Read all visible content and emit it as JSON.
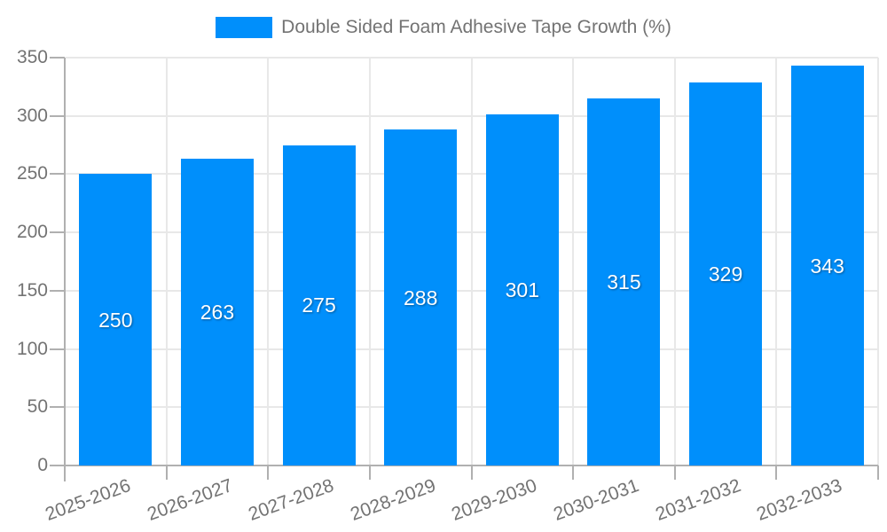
{
  "legend": {
    "label": "Double Sided Foam Adhesive Tape Growth (%)"
  },
  "chart_data": {
    "type": "bar",
    "title": "Double Sided Foam Adhesive Tape Growth (%)",
    "categories": [
      "2025-2026",
      "2026-2027",
      "2027-2028",
      "2028-2029",
      "2029-2030",
      "2030-2031",
      "2031-2032",
      "2032-2033"
    ],
    "series": [
      {
        "name": "Double Sided Foam Adhesive Tape Growth (%)",
        "values": [
          250,
          263,
          275,
          288,
          301,
          315,
          329,
          343
        ]
      }
    ],
    "xlabel": "",
    "ylabel": "",
    "ylim": [
      0,
      350
    ],
    "ytick_step": 50,
    "ytick_labels": [
      "0",
      "50",
      "100",
      "150",
      "200",
      "250",
      "300",
      "350"
    ],
    "grid": true,
    "legend_position": "top",
    "bar_value_labels_visible": true,
    "x_label_rotation_deg": -20,
    "colors": {
      "bar": "#008FFB",
      "bar_label_text": "#FFFFFF",
      "axis_text": "#737373",
      "axis_line": "#B0B0B0",
      "gridline": "#E8E8E8",
      "background": "#FFFFFF"
    }
  }
}
